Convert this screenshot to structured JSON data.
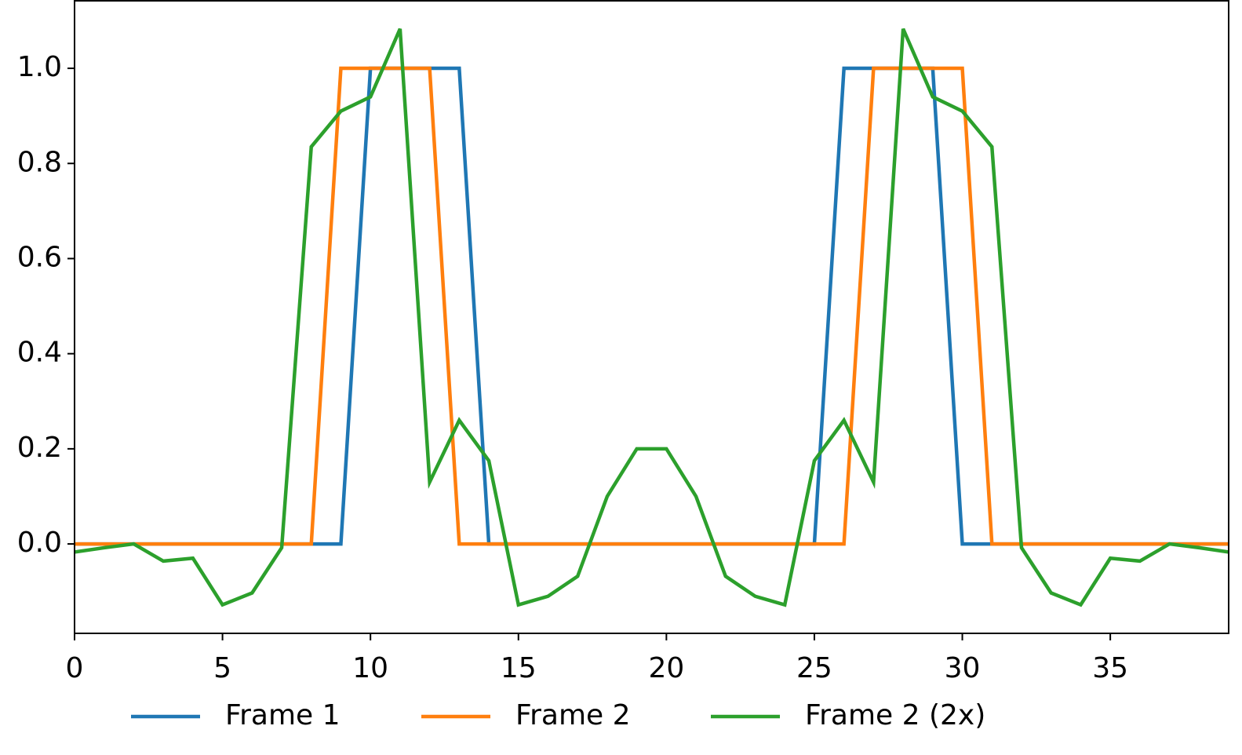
{
  "chart_data": {
    "type": "line",
    "x": [
      0,
      1,
      2,
      3,
      4,
      5,
      6,
      7,
      8,
      9,
      10,
      11,
      12,
      13,
      14,
      15,
      16,
      17,
      18,
      19,
      20,
      21,
      22,
      23,
      24,
      25,
      26,
      27,
      28,
      29,
      30,
      31,
      32,
      33,
      34,
      35,
      36,
      37,
      38,
      39
    ],
    "series": [
      {
        "name": "Frame 1",
        "color": "#1f77b4",
        "values": [
          0,
          0,
          0,
          0,
          0,
          0,
          0,
          0,
          0,
          0,
          1,
          1,
          1,
          1,
          0,
          0,
          0,
          0,
          0,
          0,
          0,
          0,
          0,
          0,
          0,
          0,
          1,
          1,
          1,
          1,
          0,
          0,
          0,
          0,
          0,
          0,
          0,
          0,
          0,
          0
        ]
      },
      {
        "name": "Frame 2",
        "color": "#ff7f0e",
        "values": [
          0,
          0,
          0,
          0,
          0,
          0,
          0,
          0,
          0,
          1,
          1,
          1,
          1,
          0,
          0,
          0,
          0,
          0,
          0,
          0,
          0,
          0,
          0,
          0,
          0,
          0,
          0,
          1,
          1,
          1,
          1,
          0,
          0,
          0,
          0,
          0,
          0,
          0,
          0,
          0
        ]
      },
      {
        "name": "Frame 2 (2x)",
        "color": "#2ca02c",
        "values": [
          -0.017,
          -0.008,
          0,
          -0.036,
          -0.03,
          -0.128,
          -0.103,
          -0.008,
          0.835,
          0.91,
          0.94,
          1.083,
          0.13,
          0.26,
          0.175,
          -0.128,
          -0.11,
          -0.068,
          0.1,
          0.2,
          0.2,
          0.1,
          -0.068,
          -0.11,
          -0.128,
          0.175,
          0.26,
          0.13,
          1.083,
          0.94,
          0.91,
          0.835,
          -0.008,
          -0.103,
          -0.128,
          -0.03,
          -0.036,
          0,
          -0.008,
          -0.017
        ]
      }
    ],
    "xlim": [
      0,
      39
    ],
    "xticks": [
      0,
      5,
      10,
      15,
      20,
      25,
      30,
      35
    ],
    "ylim": [
      -0.188,
      1.142
    ],
    "yticks": [
      {
        "value": 0,
        "label": "0.0"
      },
      0.2,
      0.4,
      0.6,
      0.8,
      {
        "value": 1,
        "label": "1.0"
      }
    ],
    "legend": "bottom"
  }
}
